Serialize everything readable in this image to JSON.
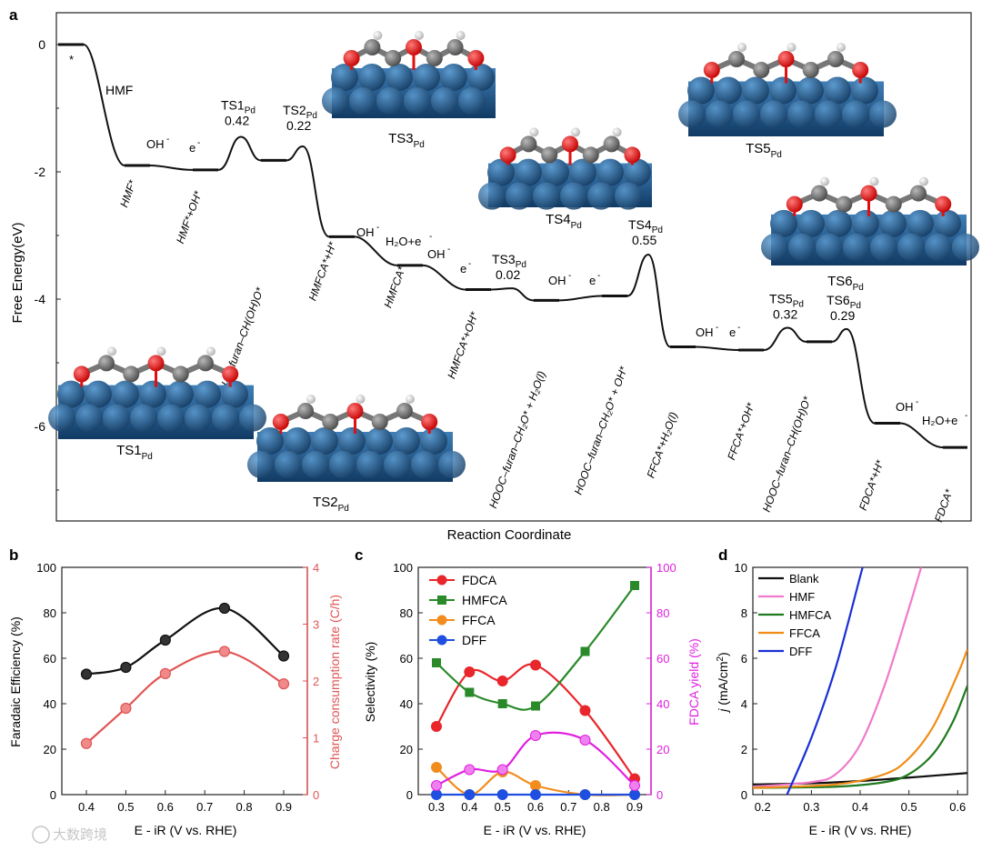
{
  "chart_data": [
    {
      "panel": "a",
      "type": "line",
      "title": "",
      "xlabel": "Reaction Coordinate",
      "ylabel": "Free Energy(eV)",
      "ylim": [
        -7.4,
        0.5
      ],
      "yticks": [
        0,
        -2,
        -4,
        -6
      ],
      "ytick_labels": [
        "0",
        "-2",
        "-4",
        "-6"
      ],
      "states": [
        {
          "label": "*",
          "energy": 0.0
        },
        {
          "label": "HMF*",
          "energy": -1.9
        },
        {
          "label": "HMF*+OH*",
          "energy": -1.97
        },
        {
          "label": "HOH₂C–furan–CH(OH)O*",
          "energy": -1.82
        },
        {
          "label": "HMFCA*+H*",
          "energy": -3.02
        },
        {
          "label": "HMFCA*",
          "energy": -3.47
        },
        {
          "label": "HMFCA*+OH*",
          "energy": -3.85
        },
        {
          "label": "HOOC–furan–CH₂O* + H₂O(l)",
          "energy": -4.02
        },
        {
          "label": "HOOC–furan–CH₂O* + OH*",
          "energy": -3.95
        },
        {
          "label": "FFCA*+H₂O(l)",
          "energy": -4.75
        },
        {
          "label": "FFCA*+OH*",
          "energy": -4.8
        },
        {
          "label": "HOOC–furan–CH(OH)O*",
          "energy": -4.67
        },
        {
          "label": "FDCA*+H*",
          "energy": -5.95
        },
        {
          "label": "FDCA*",
          "energy": -6.33
        }
      ],
      "transition_states": [
        {
          "name": "TS1",
          "sub": "Pd",
          "barrier": "0.42",
          "energy": -1.45
        },
        {
          "name": "TS2",
          "sub": "Pd",
          "barrier": "0.22",
          "energy": -1.6
        },
        {
          "name": "TS3",
          "sub": "Pd",
          "barrier": "0.02",
          "energy": -3.83
        },
        {
          "name": "TS4",
          "sub": "Pd",
          "barrier": "0.55",
          "energy": -3.3
        },
        {
          "name": "TS5",
          "sub": "Pd",
          "barrier": "0.32",
          "energy": -4.45
        },
        {
          "name": "TS6",
          "sub": "Pd",
          "barrier": "0.29",
          "energy": -4.47
        }
      ],
      "annotations": {
        "hmf": "HMF",
        "oh": "OH",
        "e": "e",
        "minus": "-",
        "h2o_e": "H₂O+e",
        "ts_word": "TS",
        "pd": "Pd",
        "ts_struct_labels": [
          "TS1",
          "TS2",
          "TS3",
          "TS4",
          "TS5",
          "TS6"
        ]
      }
    },
    {
      "panel": "b",
      "type": "line",
      "xlabel": "E - iR (V vs. RHE)",
      "ylabel": "Faradaic Efficiency (%)",
      "y2label": "Charge consumption rate (C/h)",
      "x": [
        0.4,
        0.5,
        0.6,
        0.75,
        0.9
      ],
      "xticks": [
        "0.4",
        "0.5",
        "0.6",
        "0.7",
        "0.8",
        "0.9"
      ],
      "ylim": [
        0,
        100
      ],
      "yticks": [
        "0",
        "20",
        "40",
        "60",
        "80",
        "100"
      ],
      "y2lim": [
        0,
        4
      ],
      "y2ticks": [
        "0",
        "1",
        "2",
        "3",
        "4"
      ],
      "series": [
        {
          "name": "Faradaic Efficiency",
          "axis": "left",
          "color": "#111111",
          "values": [
            53,
            56,
            68,
            82,
            61
          ]
        },
        {
          "name": "Charge consumption rate",
          "axis": "right",
          "color": "#e05555",
          "values": [
            0.9,
            1.52,
            2.13,
            2.52,
            1.95
          ]
        }
      ]
    },
    {
      "panel": "c",
      "type": "line",
      "xlabel": "E - iR (V vs. RHE)",
      "ylabel": "Selectivity (%)",
      "y2label": "FDCA yield (%)",
      "x": [
        0.3,
        0.4,
        0.5,
        0.6,
        0.75,
        0.9
      ],
      "xticks": [
        "0.3",
        "0.4",
        "0.5",
        "0.6",
        "0.7",
        "0.8",
        "0.9"
      ],
      "ylim": [
        0,
        100
      ],
      "yticks": [
        "0",
        "20",
        "40",
        "60",
        "80",
        "100"
      ],
      "y2ticks": [
        "0",
        "20",
        "40",
        "60",
        "80",
        "100"
      ],
      "series": [
        {
          "name": "FDCA",
          "color": "#e8262b",
          "marker": "circle",
          "values": [
            30,
            54,
            50,
            57,
            37,
            7
          ]
        },
        {
          "name": "HMFCA",
          "color": "#2a8a2a",
          "marker": "square",
          "values": [
            58,
            45,
            40,
            39,
            63,
            92
          ]
        },
        {
          "name": "FFCA",
          "color": "#f28c1c",
          "marker": "circle",
          "values": [
            12,
            0,
            10,
            4,
            0,
            0
          ]
        },
        {
          "name": "DFF",
          "color": "#1f4fe0",
          "marker": "circle",
          "values": [
            0,
            0,
            0,
            0,
            0,
            0
          ]
        },
        {
          "name": "FDCA yield",
          "color": "#e020e0",
          "marker": "circle",
          "axis": "right",
          "values": [
            4,
            11,
            11,
            26,
            24,
            4
          ]
        }
      ]
    },
    {
      "panel": "d",
      "type": "line",
      "xlabel": "E - iR (V vs. RHE)",
      "ylabel": "j (mA/cm²)",
      "ylabel_italic": "j",
      "ylabel_rest": " (mA/cm",
      "ylabel_sup": "2",
      "ylabel_close": ")",
      "xlim": [
        0.18,
        0.62
      ],
      "xticks": [
        "0.2",
        "0.3",
        "0.4",
        "0.5",
        "0.6"
      ],
      "ylim": [
        0,
        10
      ],
      "yticks": [
        "0",
        "2",
        "4",
        "6",
        "8",
        "10"
      ],
      "series": [
        {
          "name": "Blank",
          "color": "#111111",
          "x": [
            0.18,
            0.3,
            0.4,
            0.5,
            0.62
          ],
          "y": [
            0.45,
            0.5,
            0.6,
            0.75,
            0.95
          ]
        },
        {
          "name": "HMF",
          "color": "#f07acc",
          "x": [
            0.18,
            0.3,
            0.35,
            0.4,
            0.45,
            0.5,
            0.525
          ],
          "y": [
            0.35,
            0.55,
            0.9,
            2.2,
            4.8,
            8.2,
            10
          ]
        },
        {
          "name": "HMFCA",
          "color": "#1e7a1e",
          "x": [
            0.18,
            0.35,
            0.45,
            0.5,
            0.55,
            0.59,
            0.62
          ],
          "y": [
            0.3,
            0.35,
            0.55,
            0.9,
            1.8,
            3.2,
            4.8
          ]
        },
        {
          "name": "FFCA",
          "color": "#f08c14",
          "x": [
            0.18,
            0.35,
            0.45,
            0.5,
            0.55,
            0.6,
            0.62
          ],
          "y": [
            0.3,
            0.45,
            0.9,
            1.6,
            3.0,
            5.3,
            6.4
          ]
        },
        {
          "name": "DFF",
          "color": "#1a2fd6",
          "x": [
            0.25,
            0.3,
            0.35,
            0.4,
            0.405
          ],
          "y": [
            0,
            2.5,
            5.6,
            9.6,
            10
          ]
        }
      ]
    }
  ],
  "panel_labels": {
    "a": "a",
    "b": "b",
    "c": "c",
    "d": "d"
  },
  "watermark": "大数跨境",
  "colors": {
    "black": "#111111",
    "red": "#e05555",
    "magenta": "#e020e0"
  }
}
